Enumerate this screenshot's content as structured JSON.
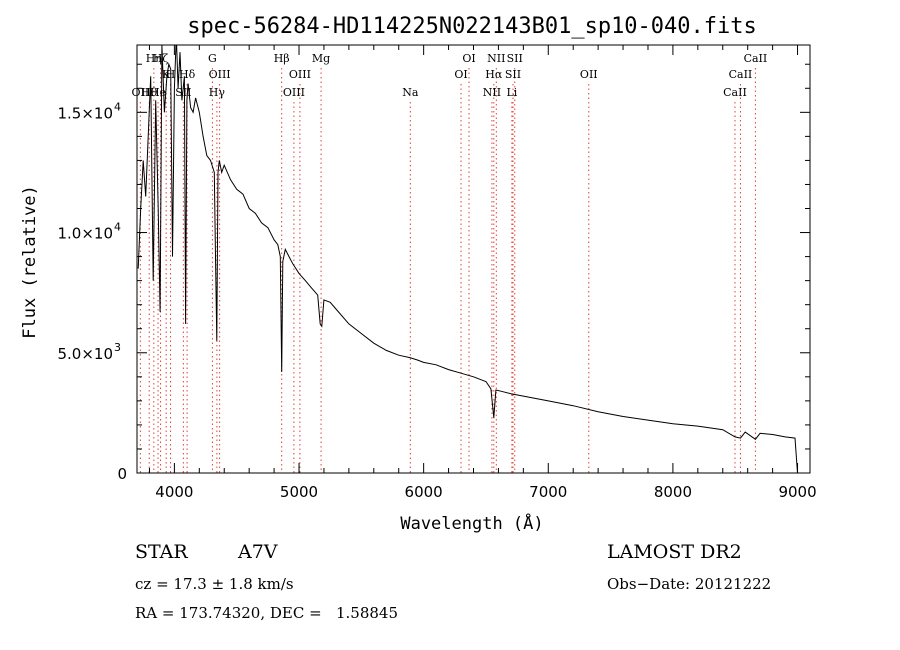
{
  "chart_data": {
    "type": "line",
    "title": "spec-56284-HD114225N022143B01_sp10-040.fits",
    "xlabel": "Wavelength (Å)",
    "ylabel": "Flux (relative)",
    "xlim": [
      3700,
      9100
    ],
    "ylim": [
      0,
      17800
    ],
    "xticks": [
      4000,
      5000,
      6000,
      7000,
      8000,
      9000
    ],
    "xtick_labels": [
      "4000",
      "5000",
      "6000",
      "7000",
      "8000",
      "9000"
    ],
    "yticks": [
      0,
      5000,
      10000,
      15000
    ],
    "ytick_labels": [
      "0",
      "5.0×10",
      "1.0×10",
      "1.5×10"
    ],
    "ytick_exponents": [
      "",
      "3",
      "4",
      "4"
    ],
    "grid": false,
    "series": [
      {
        "color": "#000000",
        "x": [
          3710,
          3730,
          3750,
          3770,
          3790,
          3810,
          3830,
          3850,
          3870,
          3885,
          3900,
          3920,
          3940,
          3955,
          3970,
          3985,
          4000,
          4015,
          4030,
          4045,
          4060,
          4080,
          4090,
          4100,
          4110,
          4130,
          4150,
          4170,
          4200,
          4230,
          4260,
          4290,
          4320,
          4330,
          4340,
          4350,
          4360,
          4380,
          4400,
          4450,
          4500,
          4550,
          4600,
          4650,
          4700,
          4750,
          4800,
          4830,
          4850,
          4861,
          4870,
          4890,
          4920,
          4950,
          5000,
          5050,
          5100,
          5150,
          5170,
          5183,
          5200,
          5250,
          5300,
          5400,
          5500,
          5600,
          5700,
          5800,
          5890,
          5950,
          6000,
          6100,
          6200,
          6300,
          6400,
          6500,
          6540,
          6563,
          6580,
          6620,
          6700,
          6800,
          6900,
          7000,
          7200,
          7400,
          7600,
          7800,
          8000,
          8200,
          8400,
          8498,
          8542,
          8580,
          8662,
          8700,
          8800,
          8900,
          8980,
          9000
        ],
        "y": [
          8500,
          11000,
          13000,
          11500,
          14000,
          16500,
          8000,
          15500,
          11000,
          6700,
          17800,
          15000,
          16500,
          17000,
          16800,
          9000,
          16000,
          18200,
          16000,
          17500,
          15500,
          16500,
          6200,
          15500,
          16200,
          15200,
          15000,
          15600,
          15000,
          14000,
          13200,
          13000,
          12500,
          9000,
          5500,
          12500,
          13000,
          12500,
          12800,
          12200,
          11800,
          11600,
          11000,
          10800,
          10400,
          10200,
          9700,
          9500,
          9000,
          4200,
          8800,
          9300,
          9000,
          8700,
          8300,
          8000,
          7700,
          7400,
          6200,
          6100,
          7200,
          7100,
          6800,
          6200,
          5800,
          5400,
          5100,
          4900,
          4800,
          4700,
          4600,
          4500,
          4300,
          4150,
          4000,
          3800,
          3500,
          2300,
          3450,
          3400,
          3300,
          3200,
          3100,
          3000,
          2800,
          2550,
          2350,
          2200,
          2050,
          1950,
          1800,
          1500,
          1450,
          1700,
          1400,
          1650,
          1600,
          1500,
          1450,
          0
        ]
      }
    ],
    "line_markers": [
      {
        "x": 3727,
        "label": "OII",
        "row": 3
      },
      {
        "x": 3798,
        "label": "Hθ",
        "row": 3
      },
      {
        "x": 3835,
        "label": "Hη",
        "row": 1
      },
      {
        "x": 3869,
        "label": "He",
        "row": 3
      },
      {
        "x": 3889,
        "label": "Hζ",
        "row": 1
      },
      {
        "x": 3934,
        "label": "K",
        "row": 2
      },
      {
        "x": 3969,
        "label": "H",
        "row": 2
      },
      {
        "x": 4072,
        "label": "SII",
        "row": 3
      },
      {
        "x": 4102,
        "label": "Hδ",
        "row": 2
      },
      {
        "x": 4305,
        "label": "G",
        "row": 1
      },
      {
        "x": 4341,
        "label": "Hγ",
        "row": 3
      },
      {
        "x": 4363,
        "label": "OIII",
        "row": 2
      },
      {
        "x": 4861,
        "label": "Hβ",
        "row": 1
      },
      {
        "x": 4959,
        "label": "OIII",
        "row": 3
      },
      {
        "x": 5007,
        "label": "OIII",
        "row": 2
      },
      {
        "x": 5177,
        "label": "Mg",
        "row": 1
      },
      {
        "x": 5893,
        "label": "Na",
        "row": 3
      },
      {
        "x": 6300,
        "label": "OI",
        "row": 2
      },
      {
        "x": 6364,
        "label": "OI",
        "row": 1
      },
      {
        "x": 6548,
        "label": "NII",
        "row": 3
      },
      {
        "x": 6563,
        "label": "Hα",
        "row": 2
      },
      {
        "x": 6583,
        "label": "NII",
        "row": 1
      },
      {
        "x": 6708,
        "label": "Li",
        "row": 3
      },
      {
        "x": 6717,
        "label": "SII",
        "row": 2
      },
      {
        "x": 6731,
        "label": "SII",
        "row": 1
      },
      {
        "x": 7325,
        "label": "OII",
        "row": 2
      },
      {
        "x": 8498,
        "label": "CaII",
        "row": 3
      },
      {
        "x": 8542,
        "label": "CaII",
        "row": 2
      },
      {
        "x": 8662,
        "label": "CaII",
        "row": 1
      }
    ],
    "colors": {
      "spectrum": "#000000",
      "marker": "#e0433a",
      "axis": "#000000"
    }
  },
  "info": {
    "class": "STAR",
    "subclass": "A7V",
    "survey": "LAMOST DR2",
    "cz": "cz = 17.3 ± 1.8 km/s",
    "obs_date": "Obs−Date: 20121222",
    "radec": "RA = 173.74320, DEC =   1.58845"
  }
}
